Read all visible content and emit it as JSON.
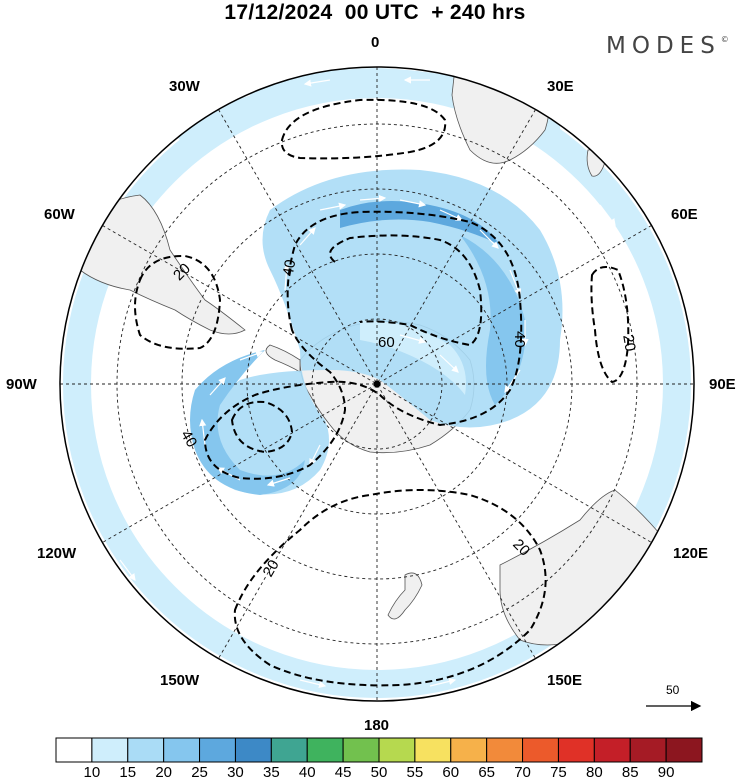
{
  "header": {
    "title": "17/12/2024  00 UTC  + 240 hrs",
    "brand": "MODES",
    "brand_mark": "©"
  },
  "map": {
    "projection": "south-polar-stereographic",
    "longitude_labels": {
      "top": "0",
      "top_right_near": "30E",
      "right_upper": "60E",
      "right": "90E",
      "right_lower": "120E",
      "bottom_right": "150E",
      "bottom": "180",
      "bottom_left": "150W",
      "left_lower": "120W",
      "left": "90W",
      "left_upper": "60W",
      "top_left": "30W"
    },
    "contour_labels": [
      "20",
      "40",
      "60",
      "40",
      "40",
      "20",
      "20",
      "20"
    ],
    "contour_interval_shown": [
      20,
      40,
      60
    ],
    "wind_vector_reference": {
      "value": "50",
      "icon": "arrow-right-icon"
    },
    "land_color": "#f0f0f0",
    "ocean_color": "#ffffff"
  },
  "colorbar": {
    "tick_labels": [
      "10",
      "15",
      "20",
      "25",
      "30",
      "35",
      "40",
      "45",
      "50",
      "55",
      "60",
      "65",
      "70",
      "75",
      "80",
      "85",
      "90"
    ],
    "colors": [
      "#ffffff",
      "#cfeefc",
      "#aadcf6",
      "#85c6ee",
      "#5da8de",
      "#3d89c6",
      "#3fa592",
      "#3fb35e",
      "#72c14e",
      "#b6d94f",
      "#f7e160",
      "#f6b14a",
      "#f28a3a",
      "#ec5a2b",
      "#e03127",
      "#c41f28",
      "#a51b25",
      "#8c161f"
    ]
  }
}
